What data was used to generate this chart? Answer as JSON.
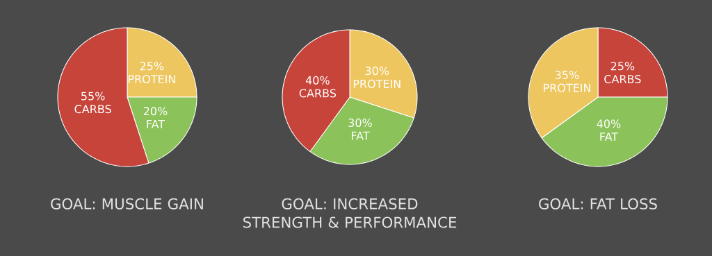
{
  "chart_data": [
    {
      "type": "pie",
      "title": "GOAL: MUSCLE GAIN",
      "categories": [
        "PROTEIN",
        "FAT",
        "CARBS"
      ],
      "values": [
        25,
        20,
        55
      ],
      "value_labels": [
        "25%",
        "20%",
        "55%"
      ],
      "colors": [
        "#eec65f",
        "#8bc25a",
        "#c6443a"
      ]
    },
    {
      "type": "pie",
      "title": "GOAL: INCREASED STRENGTH & PERFORMANCE",
      "categories": [
        "PROTEIN",
        "FAT",
        "CARBS"
      ],
      "values": [
        30,
        30,
        40
      ],
      "value_labels": [
        "30%",
        "30%",
        "40%"
      ],
      "colors": [
        "#eec65f",
        "#8bc25a",
        "#c6443a"
      ]
    },
    {
      "type": "pie",
      "title": "GOAL: FAT LOSS",
      "categories": [
        "CARBS",
        "FAT",
        "PROTEIN"
      ],
      "values": [
        25,
        40,
        35
      ],
      "value_labels": [
        "25%",
        "40%",
        "35%"
      ],
      "colors": [
        "#c6443a",
        "#8bc25a",
        "#eec65f"
      ]
    }
  ]
}
